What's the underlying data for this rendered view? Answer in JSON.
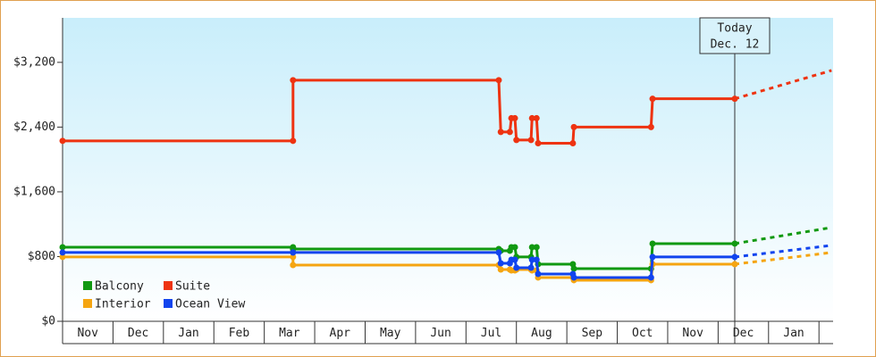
{
  "chart_data": {
    "type": "line",
    "step": true,
    "x": [
      0,
      4.57,
      4.57,
      8.65,
      8.69,
      8.87,
      8.9,
      8.97,
      9.0,
      9.29,
      9.31,
      9.4,
      9.43,
      10.12,
      10.14,
      11.67,
      11.7,
      13.33
    ],
    "series": [
      {
        "name": "Balcony",
        "color": "#119911",
        "values": [
          916,
          916,
          894,
          894,
          872,
          872,
          916,
          916,
          795,
          795,
          916,
          916,
          706,
          706,
          651,
          651,
          960,
          960
        ],
        "projected": {
          "x": [
            13.33,
            15.25
          ],
          "values": [
            960,
            1159
          ]
        }
      },
      {
        "name": "Suite",
        "color": "#ee3311",
        "values": [
          2230,
          2230,
          2980,
          2980,
          2340,
          2340,
          2510,
          2510,
          2240,
          2240,
          2510,
          2510,
          2200,
          2200,
          2400,
          2400,
          2750,
          2750
        ],
        "projected": {
          "x": [
            13.33,
            15.25
          ],
          "values": [
            2750,
            3100
          ]
        }
      },
      {
        "name": "Interior",
        "color": "#f5a511",
        "values": [
          795,
          795,
          695,
          695,
          640,
          640,
          629,
          629,
          640,
          640,
          629,
          629,
          541,
          541,
          508,
          508,
          706,
          706
        ],
        "projected": {
          "x": [
            13.33,
            15.25
          ],
          "values": [
            706,
            850
          ]
        }
      },
      {
        "name": "Ocean View",
        "color": "#1144ee",
        "values": [
          850,
          850,
          850,
          850,
          717,
          717,
          761,
          761,
          662,
          662,
          761,
          761,
          585,
          585,
          541,
          541,
          795,
          795
        ],
        "projected": {
          "x": [
            13.33,
            15.25
          ],
          "values": [
            795,
            938
          ]
        }
      }
    ],
    "xlim": [
      0,
      15.28
    ],
    "xticks": [
      {
        "value": 0,
        "label": "Nov"
      },
      {
        "value": 1,
        "label": "Dec"
      },
      {
        "value": 2,
        "label": "Jan"
      },
      {
        "value": 3,
        "label": "Feb"
      },
      {
        "value": 4,
        "label": "Mar"
      },
      {
        "value": 5,
        "label": "Apr"
      },
      {
        "value": 6,
        "label": "May"
      },
      {
        "value": 7,
        "label": "Jun"
      },
      {
        "value": 8,
        "label": "Jul"
      },
      {
        "value": 9,
        "label": "Aug"
      },
      {
        "value": 10,
        "label": "Sep"
      },
      {
        "value": 11,
        "label": "Oct"
      },
      {
        "value": 12,
        "label": "Nov"
      },
      {
        "value": 13,
        "label": "Dec"
      },
      {
        "value": 14,
        "label": "Jan"
      }
    ],
    "ylim": [
      0,
      3750
    ],
    "yticks": [
      {
        "value": 0,
        "label": "$0"
      },
      {
        "value": 800,
        "label": "$800"
      },
      {
        "value": 1600,
        "label": "$1,600"
      },
      {
        "value": 2400,
        "label": "$2,400"
      },
      {
        "value": 3200,
        "label": "$3,200"
      }
    ],
    "annotation": {
      "x": 13.33,
      "lines": [
        "Today",
        "Dec. 12"
      ]
    },
    "legend": "bottom-left"
  }
}
